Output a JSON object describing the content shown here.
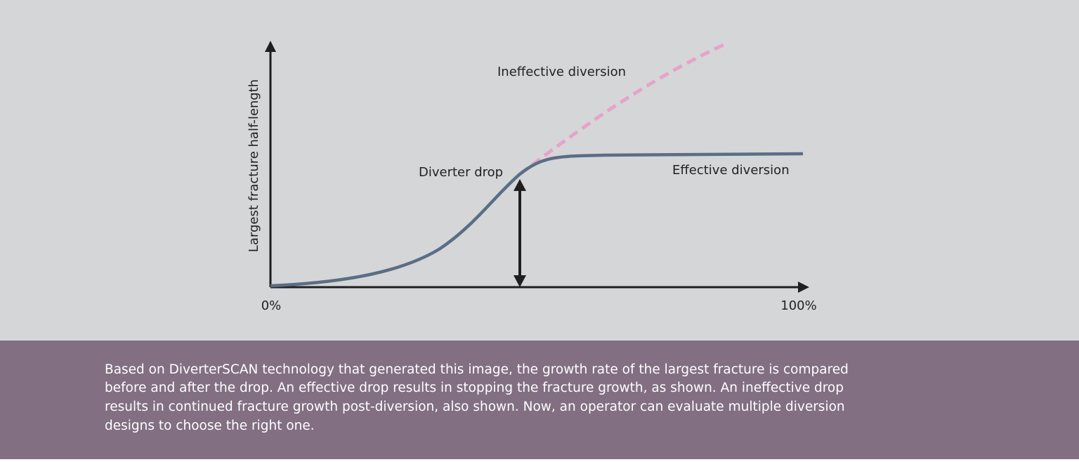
{
  "diagram": {
    "y_axis_label": "Largest fracture half-length",
    "x_start_label": "0%",
    "x_end_label": "100%",
    "annotations": {
      "ineffective": "Ineffective diversion",
      "drop": "Diverter drop",
      "effective": "Effective diversion"
    }
  },
  "caption": {
    "lines": [
      "Based on DiverterSCAN technology that generated this image, the growth rate of the largest fracture is compared",
      "before and after the drop. An effective drop results in stopping the fracture growth, as shown. An ineffective drop",
      "results in continued fracture growth post-diversion, also shown. Now, an operator can evaluate multiple diversion",
      "designs to choose the right one."
    ]
  }
}
